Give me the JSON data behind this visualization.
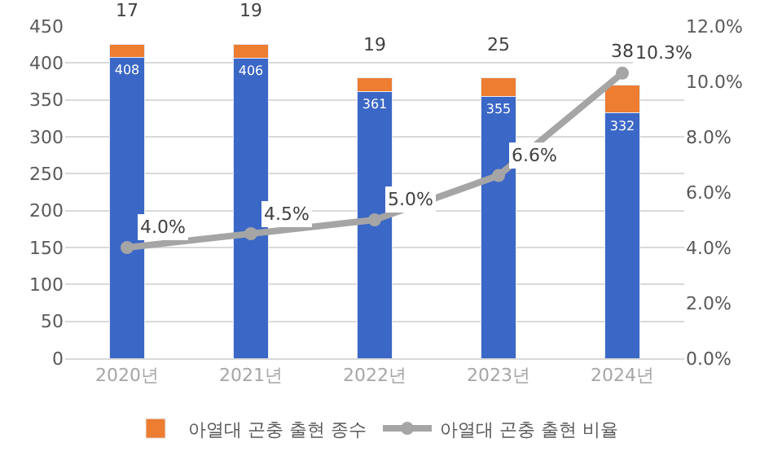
{
  "chart_data": {
    "type": "bar",
    "stacked": true,
    "categories": [
      "2020년",
      "2021년",
      "2022년",
      "2023년",
      "2024년"
    ],
    "series": [
      {
        "color": "#3b67c6",
        "values": [
          408,
          406,
          361,
          355,
          332
        ],
        "value_labels": [
          "408",
          "406",
          "361",
          "355",
          "332"
        ]
      },
      {
        "name": "아열대 곤충 출현 종수",
        "color": "#ed7d31",
        "values": [
          17,
          19,
          19,
          25,
          38
        ],
        "value_labels": [
          "17",
          "19",
          "19",
          "25",
          "38"
        ]
      },
      {
        "name": "아열대 곤충 출현 비율",
        "type": "line",
        "axis": "y2",
        "color": "#a5a5a5",
        "marker": "circle",
        "line_style": "solid",
        "values": [
          4.0,
          4.5,
          5.0,
          6.6,
          10.3
        ],
        "value_labels": [
          "4.0%",
          "4.5%",
          "5.0%",
          "6.6%",
          "10.3%"
        ]
      }
    ],
    "ylim": [
      0,
      450
    ],
    "yticks": [
      0,
      50,
      100,
      150,
      200,
      250,
      300,
      350,
      400,
      450
    ],
    "y2lim": [
      0,
      12
    ],
    "y2ticks": [
      {
        "value": 0,
        "label": "0.0%"
      },
      {
        "value": 2,
        "label": "2.0%"
      },
      {
        "value": 4,
        "label": "4.0%"
      },
      {
        "value": 6,
        "label": "6.0%"
      },
      {
        "value": 8,
        "label": "8.0%"
      },
      {
        "value": 10,
        "label": "10.0%"
      },
      {
        "value": 12,
        "label": "12.0%"
      }
    ],
    "grid": "y",
    "legend": "bottom"
  }
}
